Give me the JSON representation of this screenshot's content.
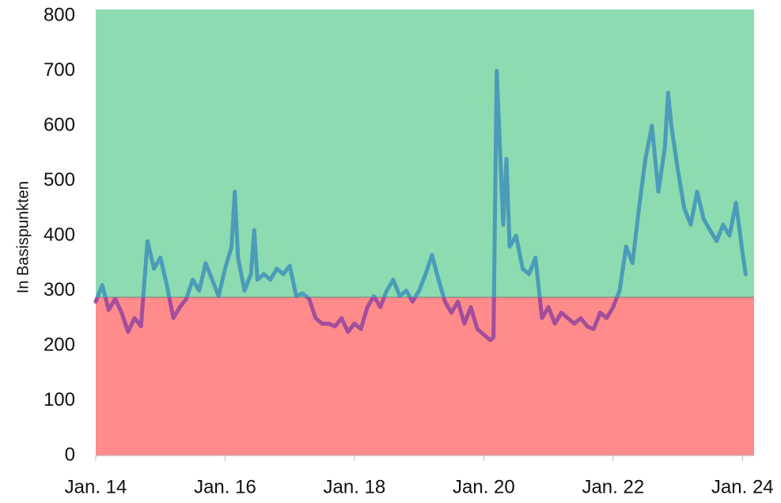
{
  "chart_data": {
    "type": "line",
    "y_label": "In Basispunkten",
    "x": [
      2014.0,
      2014.1,
      2014.2,
      2014.3,
      2014.4,
      2014.5,
      2014.6,
      2014.7,
      2014.8,
      2014.9,
      2015.0,
      2015.1,
      2015.2,
      2015.3,
      2015.4,
      2015.5,
      2015.6,
      2015.7,
      2015.8,
      2015.9,
      2016.0,
      2016.1,
      2016.15,
      2016.2,
      2016.3,
      2016.4,
      2016.45,
      2016.5,
      2016.6,
      2016.7,
      2016.8,
      2016.9,
      2017.0,
      2017.1,
      2017.2,
      2017.3,
      2017.4,
      2017.5,
      2017.6,
      2017.7,
      2017.8,
      2017.9,
      2018.0,
      2018.1,
      2018.2,
      2018.3,
      2018.4,
      2018.5,
      2018.6,
      2018.7,
      2018.8,
      2018.9,
      2019.0,
      2019.1,
      2019.2,
      2019.3,
      2019.4,
      2019.5,
      2019.6,
      2019.7,
      2019.8,
      2019.9,
      2020.0,
      2020.1,
      2020.15,
      2020.2,
      2020.25,
      2020.3,
      2020.35,
      2020.4,
      2020.5,
      2020.6,
      2020.7,
      2020.8,
      2020.9,
      2021.0,
      2021.1,
      2021.2,
      2021.3,
      2021.4,
      2021.5,
      2021.6,
      2021.7,
      2021.8,
      2021.9,
      2022.0,
      2022.1,
      2022.2,
      2022.3,
      2022.4,
      2022.5,
      2022.6,
      2022.7,
      2022.8,
      2022.85,
      2022.9,
      2023.0,
      2023.1,
      2023.2,
      2023.3,
      2023.4,
      2023.5,
      2023.6,
      2023.7,
      2023.8,
      2023.9,
      2024.0,
      2024.05
    ],
    "series": [
      {
        "color": "#4b9cb8",
        "below_color": "#a24e9c",
        "values": [
          280,
          310,
          265,
          285,
          260,
          225,
          250,
          235,
          390,
          340,
          360,
          310,
          250,
          270,
          285,
          320,
          300,
          350,
          320,
          290,
          340,
          380,
          480,
          360,
          300,
          330,
          410,
          320,
          330,
          320,
          340,
          330,
          345,
          290,
          295,
          285,
          250,
          240,
          240,
          235,
          250,
          225,
          240,
          230,
          270,
          290,
          270,
          300,
          320,
          290,
          300,
          280,
          300,
          330,
          365,
          320,
          280,
          260,
          280,
          240,
          270,
          230,
          220,
          210,
          215,
          700,
          560,
          420,
          540,
          380,
          400,
          340,
          330,
          360,
          250,
          270,
          240,
          260,
          250,
          240,
          250,
          235,
          230,
          260,
          250,
          270,
          300,
          380,
          350,
          450,
          540,
          600,
          480,
          560,
          660,
          600,
          520,
          450,
          420,
          480,
          430,
          410,
          390,
          420,
          400,
          460,
          370,
          330
        ]
      }
    ],
    "threshold": 288,
    "above_color": "#8ddbb1",
    "below_fill": "#ff8b8b",
    "xlim": [
      2014,
      2024.18
    ],
    "xticks": [
      {
        "value": 2014,
        "label": "Jan. 14"
      },
      {
        "value": 2016,
        "label": "Jan. 16"
      },
      {
        "value": 2018,
        "label": "Jan. 18"
      },
      {
        "value": 2020,
        "label": "Jan. 20"
      },
      {
        "value": 2022,
        "label": "Jan. 22"
      },
      {
        "value": 2024,
        "label": "Jan. 24"
      }
    ],
    "ylim": [
      0,
      800
    ],
    "yticks": [
      0,
      100,
      200,
      300,
      400,
      500,
      600,
      700,
      800
    ]
  }
}
